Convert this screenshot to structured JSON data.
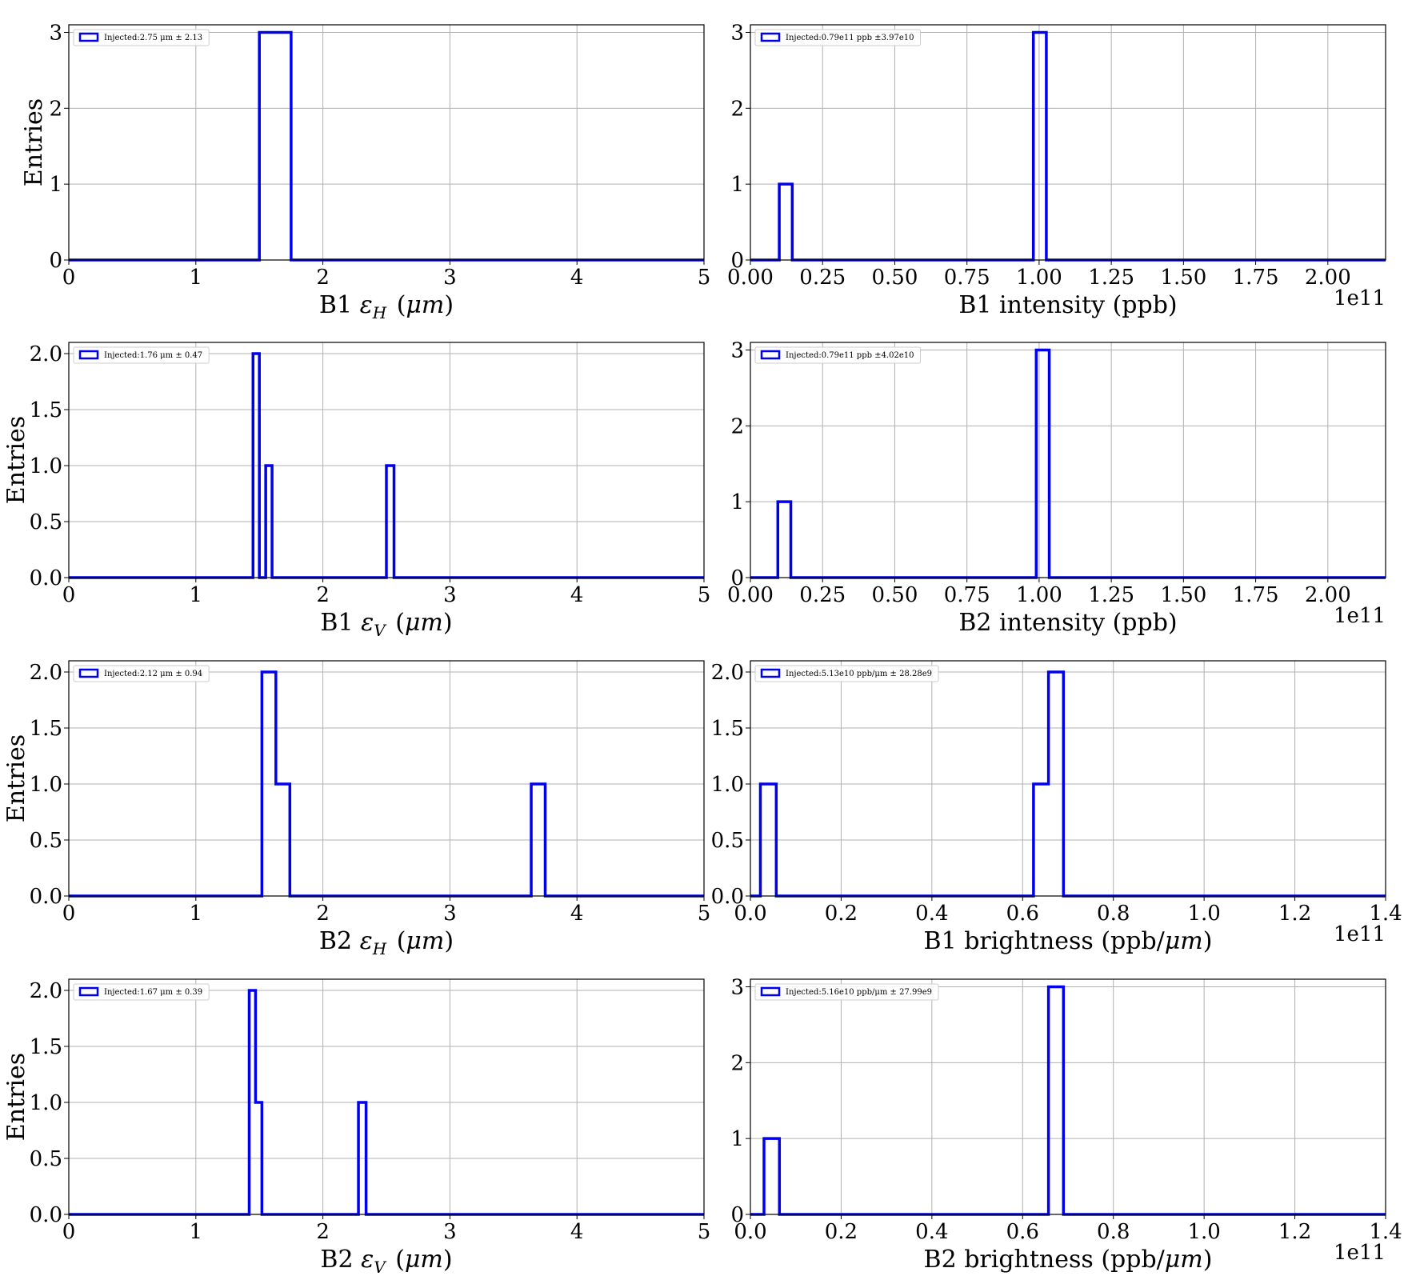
{
  "chart_data": [
    {
      "type": "histogram",
      "xlabel": "B1 εH (μm)",
      "ylabel": "Entries",
      "xlim": [
        0,
        5
      ],
      "ylim": [
        0,
        3.1
      ],
      "xticks": [
        0,
        1,
        2,
        3,
        4,
        5
      ],
      "xtick_labels": [
        "0",
        "1",
        "2",
        "3",
        "4",
        "5"
      ],
      "yticks": [
        0,
        1,
        2,
        3
      ],
      "ytick_labels": [
        "0",
        "1",
        "2",
        "3"
      ],
      "offset_label": "",
      "legend": "Injected:2.75 μm ± 2.13",
      "legend_position": "upper-left",
      "grid": true,
      "color": "#0000ee",
      "steps": [
        [
          0,
          0
        ],
        [
          1.5,
          3
        ],
        [
          1.75,
          0
        ],
        [
          5,
          0
        ]
      ]
    },
    {
      "type": "histogram",
      "xlabel": "B1 intensity (ppb)",
      "ylabel": "",
      "xlim": [
        0,
        2.2
      ],
      "ylim": [
        0,
        3.1
      ],
      "xticks": [
        0,
        0.25,
        0.5,
        0.75,
        1.0,
        1.25,
        1.5,
        1.75,
        2.0
      ],
      "xtick_labels": [
        "0.00",
        "0.25",
        "0.50",
        "0.75",
        "1.00",
        "1.25",
        "1.50",
        "1.75",
        "2.00"
      ],
      "yticks": [
        0,
        1,
        2,
        3
      ],
      "ytick_labels": [
        "0",
        "1",
        "2",
        "3"
      ],
      "offset_label": "1e11",
      "legend": "Injected:0.79e11 ppb ±3.97e10",
      "legend_position": "upper-left",
      "grid": true,
      "color": "#0000ee",
      "steps": [
        [
          0,
          0
        ],
        [
          0.1,
          1
        ],
        [
          0.145,
          0
        ],
        [
          0.98,
          3
        ],
        [
          1.025,
          0
        ],
        [
          2.2,
          0
        ]
      ]
    },
    {
      "type": "histogram",
      "xlabel": "B1 εV (μm)",
      "ylabel": "Entries",
      "xlim": [
        0,
        5
      ],
      "ylim": [
        0,
        2.1
      ],
      "xticks": [
        0,
        1,
        2,
        3,
        4,
        5
      ],
      "xtick_labels": [
        "0",
        "1",
        "2",
        "3",
        "4",
        "5"
      ],
      "yticks": [
        0,
        0.5,
        1.0,
        1.5,
        2.0
      ],
      "ytick_labels": [
        "0.0",
        "0.5",
        "1.0",
        "1.5",
        "2.0"
      ],
      "offset_label": "",
      "legend": "Injected:1.76 μm ± 0.47",
      "legend_position": "upper-left",
      "grid": true,
      "color": "#0000ee",
      "steps": [
        [
          0,
          0
        ],
        [
          1.45,
          2
        ],
        [
          1.5,
          0
        ],
        [
          1.55,
          1
        ],
        [
          1.6,
          0
        ],
        [
          2.5,
          1
        ],
        [
          2.56,
          0
        ],
        [
          5,
          0
        ]
      ]
    },
    {
      "type": "histogram",
      "xlabel": "B2 intensity (ppb)",
      "ylabel": "",
      "xlim": [
        0,
        2.2
      ],
      "ylim": [
        0,
        3.1
      ],
      "xticks": [
        0,
        0.25,
        0.5,
        0.75,
        1.0,
        1.25,
        1.5,
        1.75,
        2.0
      ],
      "xtick_labels": [
        "0.00",
        "0.25",
        "0.50",
        "0.75",
        "1.00",
        "1.25",
        "1.50",
        "1.75",
        "2.00"
      ],
      "yticks": [
        0,
        1,
        2,
        3
      ],
      "ytick_labels": [
        "0",
        "1",
        "2",
        "3"
      ],
      "offset_label": "1e11",
      "legend": "Injected:0.79e11 ppb ±4.02e10",
      "legend_position": "upper-left",
      "grid": true,
      "color": "#0000ee",
      "steps": [
        [
          0,
          0
        ],
        [
          0.095,
          1
        ],
        [
          0.14,
          0
        ],
        [
          0.99,
          3
        ],
        [
          1.035,
          0
        ],
        [
          2.2,
          0
        ]
      ]
    },
    {
      "type": "histogram",
      "xlabel": "B2 εH (μm)",
      "ylabel": "Entries",
      "xlim": [
        0,
        5
      ],
      "ylim": [
        0,
        2.1
      ],
      "xticks": [
        0,
        1,
        2,
        3,
        4,
        5
      ],
      "xtick_labels": [
        "0",
        "1",
        "2",
        "3",
        "4",
        "5"
      ],
      "yticks": [
        0,
        0.5,
        1.0,
        1.5,
        2.0
      ],
      "ytick_labels": [
        "0.0",
        "0.5",
        "1.0",
        "1.5",
        "2.0"
      ],
      "offset_label": "",
      "legend": "Injected:2.12 μm ± 0.94",
      "legend_position": "upper-left",
      "grid": true,
      "color": "#0000ee",
      "steps": [
        [
          0,
          0
        ],
        [
          1.52,
          2
        ],
        [
          1.63,
          1
        ],
        [
          1.74,
          0
        ],
        [
          3.64,
          1
        ],
        [
          3.75,
          0
        ],
        [
          5,
          0
        ]
      ]
    },
    {
      "type": "histogram",
      "xlabel": "B1 brightness (ppb/μm)",
      "ylabel": "",
      "xlim": [
        0,
        1.4
      ],
      "ylim": [
        0,
        2.1
      ],
      "xticks": [
        0,
        0.2,
        0.4,
        0.6,
        0.8,
        1.0,
        1.2,
        1.4
      ],
      "xtick_labels": [
        "0.0",
        "0.2",
        "0.4",
        "0.6",
        "0.8",
        "1.0",
        "1.2",
        "1.4"
      ],
      "yticks": [
        0,
        0.5,
        1.0,
        1.5,
        2.0
      ],
      "ytick_labels": [
        "0.0",
        "0.5",
        "1.0",
        "1.5",
        "2.0"
      ],
      "offset_label": "1e11",
      "legend": "Injected:5.13e10 ppb/μm ± 28.28e9",
      "legend_position": "upper-left",
      "grid": true,
      "color": "#0000ee",
      "steps": [
        [
          0,
          0
        ],
        [
          0.022,
          1
        ],
        [
          0.057,
          0
        ],
        [
          0.624,
          1
        ],
        [
          0.657,
          2
        ],
        [
          0.69,
          0
        ],
        [
          1.4,
          0
        ]
      ]
    },
    {
      "type": "histogram",
      "xlabel": "B2 εV (μm)",
      "ylabel": "Entries",
      "xlim": [
        0,
        5
      ],
      "ylim": [
        0,
        2.1
      ],
      "xticks": [
        0,
        1,
        2,
        3,
        4,
        5
      ],
      "xtick_labels": [
        "0",
        "1",
        "2",
        "3",
        "4",
        "5"
      ],
      "yticks": [
        0,
        0.5,
        1.0,
        1.5,
        2.0
      ],
      "ytick_labels": [
        "0.0",
        "0.5",
        "1.0",
        "1.5",
        "2.0"
      ],
      "offset_label": "",
      "legend": "Injected:1.67 μm ± 0.39",
      "legend_position": "upper-left",
      "grid": true,
      "color": "#0000ee",
      "steps": [
        [
          0,
          0
        ],
        [
          1.42,
          2
        ],
        [
          1.47,
          1
        ],
        [
          1.52,
          0
        ],
        [
          2.28,
          1
        ],
        [
          2.34,
          0
        ],
        [
          5,
          0
        ]
      ]
    },
    {
      "type": "histogram",
      "xlabel": "B2 brightness (ppb/μm)",
      "ylabel": "",
      "xlim": [
        0,
        1.4
      ],
      "ylim": [
        0,
        3.1
      ],
      "xticks": [
        0,
        0.2,
        0.4,
        0.6,
        0.8,
        1.0,
        1.2,
        1.4
      ],
      "xtick_labels": [
        "0.0",
        "0.2",
        "0.4",
        "0.6",
        "0.8",
        "1.0",
        "1.2",
        "1.4"
      ],
      "yticks": [
        0,
        1,
        2,
        3
      ],
      "ytick_labels": [
        "0",
        "1",
        "2",
        "3"
      ],
      "offset_label": "1e11",
      "legend": "Injected:5.16e10 ppb/μm ± 27.99e9",
      "legend_position": "upper-left",
      "grid": true,
      "color": "#0000ee",
      "steps": [
        [
          0,
          0
        ],
        [
          0.03,
          1
        ],
        [
          0.064,
          0
        ],
        [
          0.657,
          3
        ],
        [
          0.69,
          0
        ],
        [
          1.4,
          0
        ]
      ]
    }
  ]
}
